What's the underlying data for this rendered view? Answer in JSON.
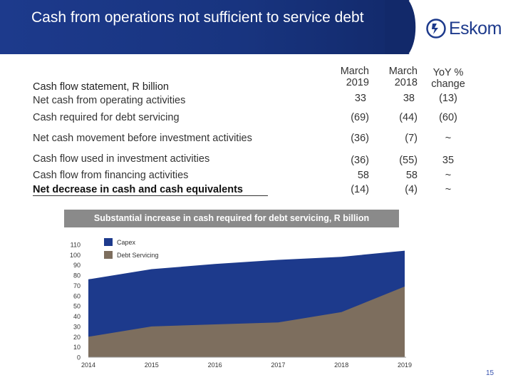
{
  "header": {
    "title": "Cash from operations not sufficient to service debt",
    "logo_text": "Eskom"
  },
  "table": {
    "row_header": "Cash flow statement, R billion",
    "columns": [
      {
        "line1": "March",
        "line2": "2019"
      },
      {
        "line1": "March",
        "line2": "2018"
      },
      {
        "line1": "YoY %",
        "line2": "change"
      }
    ],
    "rows": [
      {
        "label": "Net cash from operating activities",
        "v2019": "33",
        "v2018": "38",
        "change": "(13)"
      },
      {
        "label": "Cash required for debt servicing",
        "v2019": "(69)",
        "v2018": "(44)",
        "change": "(60)"
      },
      {
        "label": "Net cash movement before investment activities",
        "v2019": "(36)",
        "v2018": "(7)",
        "change": "~"
      },
      {
        "label": "Cash flow used in investment activities",
        "v2019": "(36)",
        "v2018": "(55)",
        "change": "35"
      },
      {
        "label": "Cash flow from financing activities",
        "v2019": "58",
        "v2018": "58",
        "change": "~"
      },
      {
        "label": "Net decrease in cash and cash equivalents",
        "v2019": "(14)",
        "v2018": "(4)",
        "change": "~"
      }
    ]
  },
  "banner": "Substantial increase in cash required for debt servicing, R billion",
  "chart_data": {
    "type": "area",
    "title": "Substantial increase in cash required for debt servicing, R billion",
    "x": [
      "2014",
      "2015",
      "2016",
      "2017",
      "2018",
      "2019"
    ],
    "yticks": [
      "0",
      "10",
      "20",
      "30",
      "40",
      "50",
      "60",
      "70",
      "80",
      "90",
      "100",
      "110"
    ],
    "ylim": [
      0,
      110
    ],
    "series": [
      {
        "name": "Capex",
        "color": "#1d3a8c",
        "values": [
          76,
          86,
          91,
          95,
          98,
          104
        ]
      },
      {
        "name": "Debt Servicing",
        "color": "#7d6e5e",
        "values": [
          20,
          30,
          32,
          34,
          44,
          69
        ]
      }
    ],
    "legend": [
      "Capex",
      "Debt Servicing"
    ]
  },
  "footer": {
    "page_number": "15"
  }
}
